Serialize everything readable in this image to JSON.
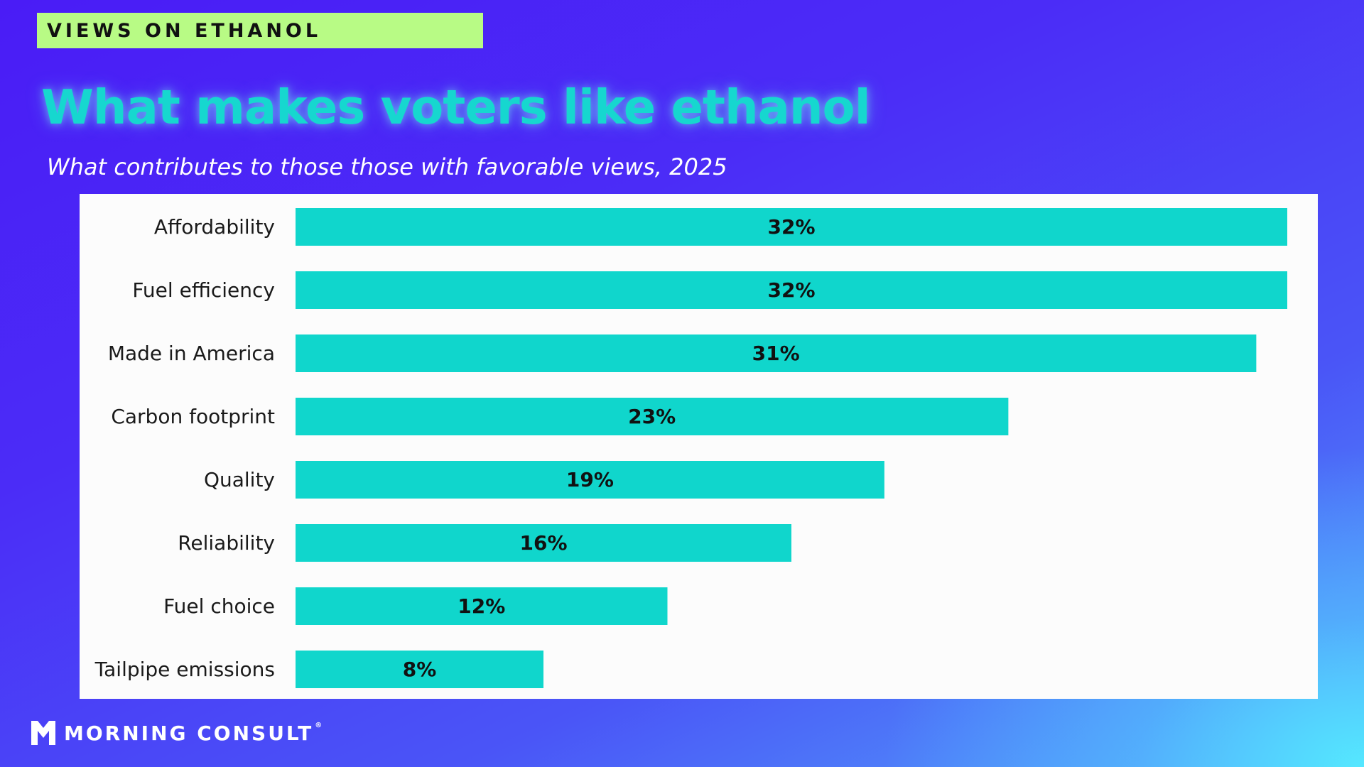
{
  "header": {
    "kicker": "VIEWS ON ETHANOL",
    "title": "What makes voters like ethanol",
    "subtitle": "What contributes to those those with favorable views, 2025"
  },
  "chart_data": {
    "type": "bar",
    "orientation": "horizontal",
    "title": "What makes voters like ethanol",
    "subtitle": "What contributes to those those with favorable views, 2025",
    "categories": [
      "Affordability",
      "Fuel efficiency",
      "Made in America",
      "Carbon footprint",
      "Quality",
      "Reliability",
      "Fuel choice",
      "Tailpipe emissions"
    ],
    "values": [
      32,
      32,
      31,
      23,
      19,
      16,
      12,
      8
    ],
    "value_labels": [
      "32%",
      "32%",
      "31%",
      "23%",
      "19%",
      "16%",
      "12%",
      "8%"
    ],
    "unit": "%",
    "xlim": [
      0,
      32
    ],
    "grid": false,
    "legend": "none",
    "bar_color": "#10d6cc"
  },
  "brand": {
    "name": "MORNING CONSULT",
    "reg_mark": "®",
    "logo_icon": "morning-consult-m-icon"
  },
  "colors": {
    "accent": "#16d7cf",
    "kicker_bg": "#b8fb85",
    "bar": "#10d6cc",
    "panel_bg": "#fcfcfc"
  }
}
